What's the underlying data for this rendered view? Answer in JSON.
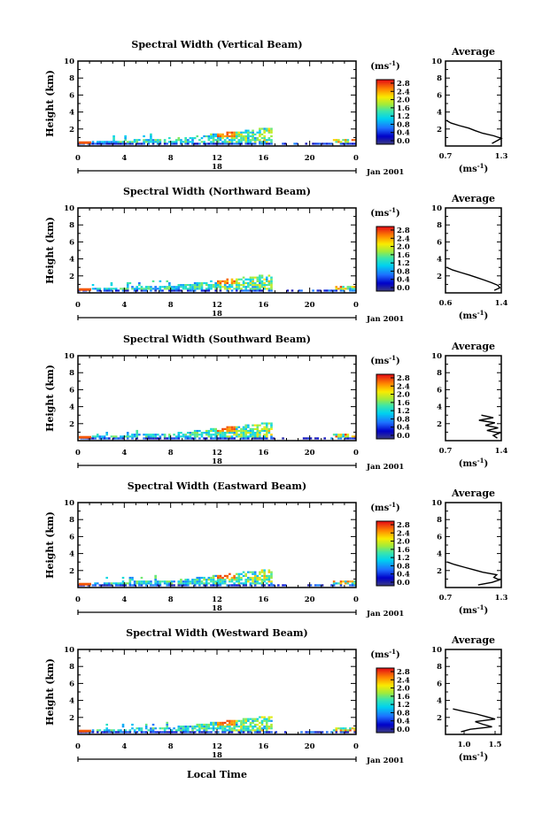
{
  "chart_data": [
    {
      "type": "heatmap",
      "title": "Spectral Width (Vertical Beam)",
      "ylabel": "Height (km)",
      "x_ticks": [
        "0",
        "4",
        "8",
        "12",
        "16",
        "20",
        "0"
      ],
      "y_ticks": [
        "2",
        "4",
        "6",
        "8",
        "10"
      ],
      "xlim": [
        0,
        24
      ],
      "ylim": [
        0,
        10
      ],
      "date_mid_label": "18",
      "date_label": "Jan 2001",
      "colorbar": {
        "unit": "ms",
        "unit_exponent": "-1",
        "ticks": [
          "0.0",
          "0.4",
          "0.8",
          "1.2",
          "1.6",
          "2.0",
          "2.4",
          "2.8"
        ],
        "range": [
          0.0,
          2.8
        ]
      },
      "average": {
        "title": "Average",
        "x_ticks": [
          "0.7",
          "1.3"
        ],
        "xlim": [
          0.7,
          1.3
        ],
        "y_ticks": [
          "2",
          "4",
          "6",
          "8",
          "10"
        ],
        "unit": "ms",
        "unit_exponent": "-1",
        "profile": [
          [
            0.3,
            1.2
          ],
          [
            0.6,
            1.25
          ],
          [
            0.9,
            1.3
          ],
          [
            1.2,
            1.22
          ],
          [
            1.5,
            1.1
          ],
          [
            1.8,
            1.02
          ],
          [
            2.1,
            0.95
          ],
          [
            2.4,
            0.85
          ],
          [
            2.7,
            0.76
          ],
          [
            3.0,
            0.71
          ]
        ]
      }
    },
    {
      "type": "heatmap",
      "title": "Spectral Width (Northward Beam)",
      "ylabel": "Height (km)",
      "x_ticks": [
        "0",
        "4",
        "8",
        "12",
        "16",
        "20",
        "0"
      ],
      "y_ticks": [
        "2",
        "4",
        "6",
        "8",
        "10"
      ],
      "xlim": [
        0,
        24
      ],
      "ylim": [
        0,
        10
      ],
      "date_mid_label": "18",
      "date_label": "Jan 2001",
      "colorbar": {
        "unit": "ms",
        "unit_exponent": "-1",
        "ticks": [
          "0.0",
          "0.4",
          "0.8",
          "1.2",
          "1.6",
          "2.0",
          "2.4",
          "2.8"
        ],
        "range": [
          0.0,
          2.8
        ]
      },
      "average": {
        "title": "Average",
        "x_ticks": [
          "0.6",
          "1.4"
        ],
        "xlim": [
          0.6,
          1.4
        ],
        "y_ticks": [
          "2",
          "4",
          "6",
          "8",
          "10"
        ],
        "unit": "ms",
        "unit_exponent": "-1",
        "profile": [
          [
            0.3,
            1.3
          ],
          [
            0.6,
            1.38
          ],
          [
            0.9,
            1.35
          ],
          [
            1.2,
            1.26
          ],
          [
            1.5,
            1.16
          ],
          [
            1.8,
            1.05
          ],
          [
            2.1,
            0.94
          ],
          [
            2.4,
            0.82
          ],
          [
            2.7,
            0.7
          ],
          [
            3.0,
            0.62
          ]
        ]
      }
    },
    {
      "type": "heatmap",
      "title": "Spectral Width (Southward Beam)",
      "ylabel": "Height (km)",
      "x_ticks": [
        "0",
        "4",
        "8",
        "12",
        "16",
        "20",
        "0"
      ],
      "y_ticks": [
        "2",
        "4",
        "6",
        "8",
        "10"
      ],
      "xlim": [
        0,
        24
      ],
      "ylim": [
        0,
        10
      ],
      "date_mid_label": "18",
      "date_label": "Jan 2001",
      "colorbar": {
        "unit": "ms",
        "unit_exponent": "-1",
        "ticks": [
          "0.0",
          "0.4",
          "0.8",
          "1.2",
          "1.6",
          "2.0",
          "2.4",
          "2.8"
        ],
        "range": [
          0.0,
          2.8
        ]
      },
      "average": {
        "title": "Average",
        "x_ticks": [
          "0.7",
          "1.4"
        ],
        "xlim": [
          0.7,
          1.4
        ],
        "y_ticks": [
          "2",
          "4",
          "6",
          "8",
          "10"
        ],
        "unit": "ms",
        "unit_exponent": "-1",
        "profile": [
          [
            0.3,
            1.35
          ],
          [
            0.6,
            1.3
          ],
          [
            0.9,
            1.38
          ],
          [
            1.2,
            1.22
          ],
          [
            1.5,
            1.36
          ],
          [
            1.8,
            1.2
          ],
          [
            2.1,
            1.32
          ],
          [
            2.4,
            1.12
          ],
          [
            2.7,
            1.3
          ],
          [
            3.0,
            1.15
          ]
        ]
      }
    },
    {
      "type": "heatmap",
      "title": "Spectral Width (Eastward Beam)",
      "ylabel": "Height (km)",
      "x_ticks": [
        "0",
        "4",
        "8",
        "12",
        "16",
        "20",
        "0"
      ],
      "y_ticks": [
        "2",
        "4",
        "6",
        "8",
        "10"
      ],
      "xlim": [
        0,
        24
      ],
      "ylim": [
        0,
        10
      ],
      "date_mid_label": "18",
      "date_label": "Jan 2001",
      "colorbar": {
        "unit": "ms",
        "unit_exponent": "-1",
        "ticks": [
          "0.0",
          "0.4",
          "0.8",
          "1.2",
          "1.6",
          "2.0",
          "2.4",
          "2.8"
        ],
        "range": [
          0.0,
          2.8
        ]
      },
      "average": {
        "title": "Average",
        "x_ticks": [
          "0.7",
          "1.3"
        ],
        "xlim": [
          0.7,
          1.3
        ],
        "y_ticks": [
          "2",
          "4",
          "6",
          "8",
          "10"
        ],
        "unit": "ms",
        "unit_exponent": "-1",
        "profile": [
          [
            0.3,
            1.05
          ],
          [
            0.6,
            1.2
          ],
          [
            0.9,
            1.28
          ],
          [
            1.2,
            1.22
          ],
          [
            1.5,
            1.25
          ],
          [
            1.8,
            1.1
          ],
          [
            2.1,
            1.0
          ],
          [
            2.4,
            0.9
          ],
          [
            2.7,
            0.8
          ],
          [
            3.0,
            0.72
          ]
        ]
      }
    },
    {
      "type": "heatmap",
      "title": "Spectral Width (Westward Beam)",
      "ylabel": "Height (km)",
      "x_ticks": [
        "0",
        "4",
        "8",
        "12",
        "16",
        "20",
        "0"
      ],
      "y_ticks": [
        "2",
        "4",
        "6",
        "8",
        "10"
      ],
      "xlim": [
        0,
        24
      ],
      "ylim": [
        0,
        10
      ],
      "date_mid_label": "18",
      "date_label": "Jan 2001",
      "colorbar": {
        "unit": "ms",
        "unit_exponent": "-1",
        "ticks": [
          "0.0",
          "0.4",
          "0.8",
          "1.2",
          "1.6",
          "2.0",
          "2.4",
          "2.8"
        ],
        "range": [
          0.0,
          2.8
        ]
      },
      "average": {
        "title": "Average",
        "x_ticks": [
          "1.0",
          "1.5"
        ],
        "xlim": [
          0.7,
          1.6
        ],
        "y_ticks": [
          "2",
          "4",
          "6",
          "8",
          "10"
        ],
        "unit": "ms",
        "unit_exponent": "-1",
        "profile": [
          [
            0.3,
            0.95
          ],
          [
            0.6,
            1.1
          ],
          [
            0.9,
            1.45
          ],
          [
            1.2,
            1.3
          ],
          [
            1.5,
            1.18
          ],
          [
            1.8,
            1.5
          ],
          [
            2.1,
            1.35
          ],
          [
            2.4,
            1.2
          ],
          [
            2.7,
            1.0
          ],
          [
            3.0,
            0.82
          ]
        ]
      }
    }
  ],
  "footer": {
    "xlabel": "Local Time"
  }
}
